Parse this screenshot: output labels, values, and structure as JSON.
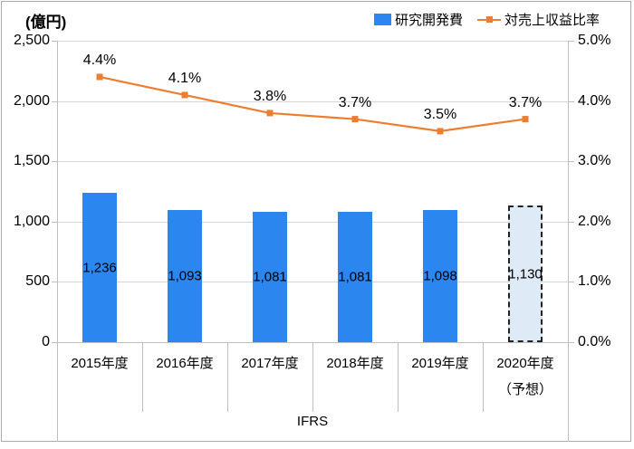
{
  "axes": {
    "left": {
      "title": "(億円)",
      "ticks": [
        "2,500",
        "2,000",
        "1,500",
        "1,000",
        "500",
        "0"
      ]
    },
    "right": {
      "ticks": [
        "5.0%",
        "4.0%",
        "3.0%",
        "2.0%",
        "1.0%",
        "0.0%"
      ]
    },
    "x": {
      "group_label": "IFRS"
    }
  },
  "legend": {
    "items": [
      {
        "label": "研究開発費"
      },
      {
        "label": "対売上収益比率"
      }
    ]
  },
  "chart_data": {
    "type": "combo-bar-line",
    "categories": [
      "2015年度",
      "2016年度",
      "2017年度",
      "2018年度",
      "2019年度",
      "2020年度"
    ],
    "category_sublabels": [
      "",
      "",
      "",
      "",
      "",
      "（予想）"
    ],
    "series": [
      {
        "name": "研究開発費",
        "type": "bar",
        "unit": "億円",
        "values": [
          1236,
          1093,
          1081,
          1081,
          1098,
          1130
        ],
        "labels": [
          "1,236",
          "1,093",
          "1,081",
          "1,081",
          "1,098",
          "1,130"
        ],
        "forecast_index": 5
      },
      {
        "name": "対売上収益比率",
        "type": "line",
        "unit": "%",
        "values": [
          4.4,
          4.1,
          3.8,
          3.7,
          3.5,
          3.7
        ],
        "labels": [
          "4.4%",
          "4.1%",
          "3.8%",
          "3.7%",
          "3.5%",
          "3.7%"
        ]
      }
    ],
    "left_ylim": [
      0,
      2500
    ],
    "left_step": 500,
    "right_ylim": [
      0,
      5.0
    ],
    "right_step": 1.0,
    "group_label": "IFRS",
    "grid": true,
    "legend_position": "top-right"
  },
  "colors": {
    "bar": "#2C86F0",
    "forecast_fill": "#DEEBF7",
    "forecast_border": "#222222",
    "line": "#ED7D31",
    "grid": "#D6D6D6",
    "axis": "#BFBFBF",
    "frame": "#ABABAB",
    "text": "#000000"
  }
}
